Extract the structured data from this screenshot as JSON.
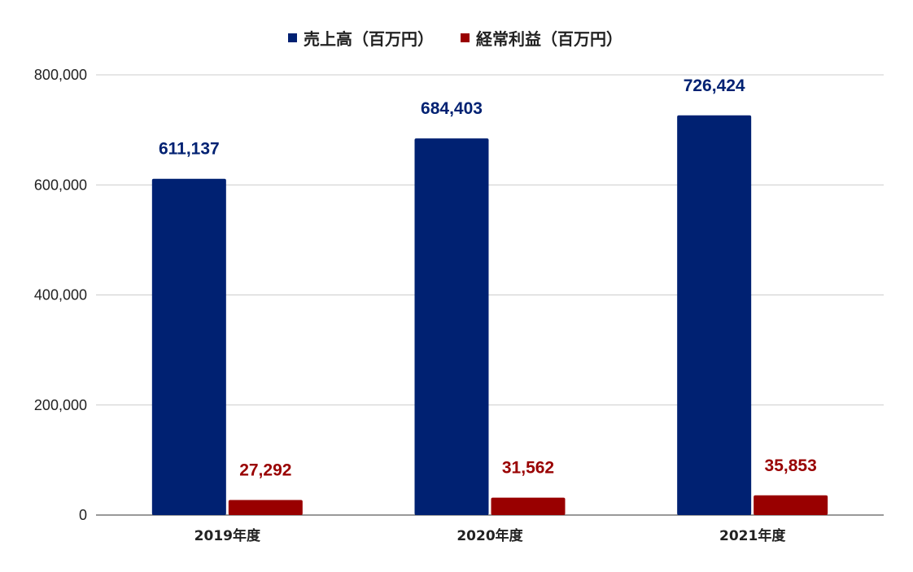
{
  "chart_data": {
    "type": "bar",
    "categories": [
      "2019年度",
      "2020年度",
      "2021年度"
    ],
    "series": [
      {
        "name": "売上高（百万円）",
        "color": "#002172",
        "values": [
          611137,
          684403,
          726424
        ],
        "labels": [
          "611,137",
          "684,403",
          "726,424"
        ]
      },
      {
        "name": "経常利益（百万円）",
        "color": "#990000",
        "values": [
          27292,
          31562,
          35853
        ],
        "labels": [
          "27,292",
          "31,562",
          "35,853"
        ]
      }
    ],
    "ylim": [
      0,
      800000
    ],
    "yticks": [
      0,
      200000,
      400000,
      600000,
      800000
    ],
    "ytick_labels": [
      "0",
      "200,000",
      "400,000",
      "600,000",
      "800,000"
    ],
    "grid": true,
    "legend_position": "top-center"
  }
}
